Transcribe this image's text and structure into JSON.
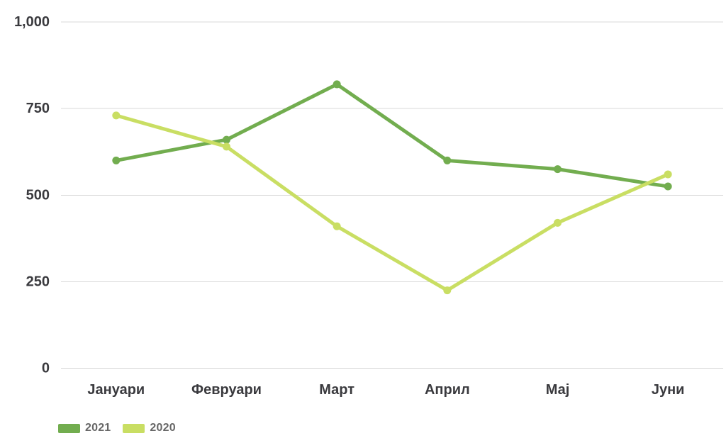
{
  "chart_data": {
    "type": "line",
    "title": "",
    "xlabel": "",
    "ylabel": "",
    "categories": [
      "Јануари",
      "Февруари",
      "Март",
      "Април",
      "Мај",
      "Јуни"
    ],
    "series": [
      {
        "name": "2021",
        "color": "#72ad4f",
        "values": [
          600,
          660,
          820,
          600,
          575,
          525
        ]
      },
      {
        "name": "2020",
        "color": "#c9de63",
        "values": [
          730,
          640,
          410,
          225,
          420,
          560
        ]
      }
    ],
    "ylim": [
      0,
      1000
    ],
    "yticks": {
      "values": [
        0,
        250,
        500,
        750,
        1000
      ],
      "labels": [
        "0",
        "250",
        "500",
        "750",
        "1,000"
      ]
    },
    "grid": true,
    "legend_position": "bottom-left",
    "colors": {
      "gridline": "#d9d9d9",
      "tick_label": "#3a3a3e",
      "legend_label": "#666666",
      "background": "#ffffff"
    }
  }
}
